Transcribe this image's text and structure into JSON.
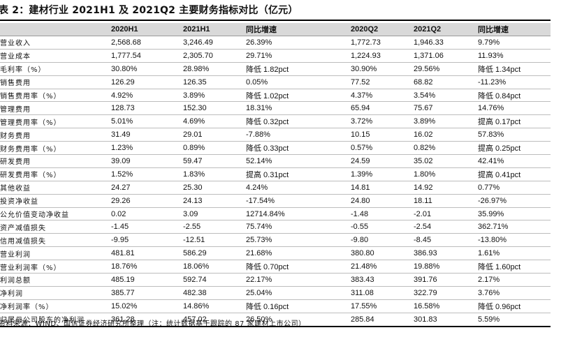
{
  "title": "表 2：建材行业 2021H1 及 2021Q2 主要财务指标对比（亿元）",
  "headers": [
    "",
    "2020H1",
    "2021H1",
    "同比增速",
    "2020Q2",
    "2021Q2",
    "同比增速"
  ],
  "rows": [
    [
      "营业收入",
      "2,568.68",
      "3,246.49",
      "26.39%",
      "1,772.73",
      "1,946.33",
      "9.79%"
    ],
    [
      "营业成本",
      "1,777.54",
      "2,305.70",
      "29.71%",
      "1,224.93",
      "1,371.06",
      "11.93%"
    ],
    [
      "毛利率（%）",
      "30.80%",
      "28.98%",
      "降低 1.82pct",
      "30.90%",
      "29.56%",
      "降低 1.34pct"
    ],
    [
      "销售费用",
      "126.29",
      "126.35",
      "0.05%",
      "77.52",
      "68.82",
      "-11.23%"
    ],
    [
      "销售费用率（%）",
      "4.92%",
      "3.89%",
      "降低 1.02pct",
      "4.37%",
      "3.54%",
      "降低 0.84pct"
    ],
    [
      "管理费用",
      "128.73",
      "152.30",
      "18.31%",
      "65.94",
      "75.67",
      "14.76%"
    ],
    [
      "管理费用率（%）",
      "5.01%",
      "4.69%",
      "降低 0.32pct",
      "3.72%",
      "3.89%",
      "提高 0.17pct"
    ],
    [
      "财务费用",
      "31.49",
      "29.01",
      "-7.88%",
      "10.15",
      "16.02",
      "57.83%"
    ],
    [
      "财务费用率（%）",
      "1.23%",
      "0.89%",
      "降低 0.33pct",
      "0.57%",
      "0.82%",
      "提高 0.25pct"
    ],
    [
      "研发费用",
      "39.09",
      "59.47",
      "52.14%",
      "24.59",
      "35.02",
      "42.41%"
    ],
    [
      "研发费用率（%）",
      "1.52%",
      "1.83%",
      "提高 0.31pct",
      "1.39%",
      "1.80%",
      "提高 0.41pct"
    ],
    [
      "其他收益",
      "24.27",
      "25.30",
      "4.24%",
      "14.81",
      "14.92",
      "0.77%"
    ],
    [
      "投资净收益",
      "29.26",
      "24.13",
      "-17.54%",
      "24.80",
      "18.11",
      "-26.97%"
    ],
    [
      "公允价值变动净收益",
      "0.02",
      "3.09",
      "12714.84%",
      "-1.48",
      "-2.01",
      "35.99%"
    ],
    [
      "资产减值损失",
      "-1.45",
      "-2.55",
      "75.74%",
      "-0.55",
      "-2.54",
      "362.71%"
    ],
    [
      "信用减值损失",
      "-9.95",
      "-12.51",
      "25.73%",
      "-9.80",
      "-8.45",
      "-13.80%"
    ],
    [
      "营业利润",
      "481.81",
      "586.29",
      "21.68%",
      "380.80",
      "386.93",
      "1.61%"
    ],
    [
      "营业利润率（%）",
      "18.76%",
      "18.06%",
      "降低 0.70pct",
      "21.48%",
      "19.88%",
      "降低 1.60pct"
    ],
    [
      "利润总额",
      "485.19",
      "592.74",
      "22.17%",
      "383.43",
      "391.76",
      "2.17%"
    ],
    [
      "净利润",
      "385.77",
      "482.38",
      "25.04%",
      "311.08",
      "322.79",
      "3.76%"
    ],
    [
      "净利润率（%）",
      "15.02%",
      "14.86%",
      "降低 0.16pct",
      "17.55%",
      "16.58%",
      "降低 0.96pct"
    ],
    [
      "归属母公司股东的净利润",
      "361.28",
      "457.02",
      "26.50%",
      "285.84",
      "301.83",
      "5.59%"
    ]
  ],
  "source": "资料来源：WIND、国信证券经济研究所整理（注：统计数据基于跟踪的 87 家建材上市公司）"
}
